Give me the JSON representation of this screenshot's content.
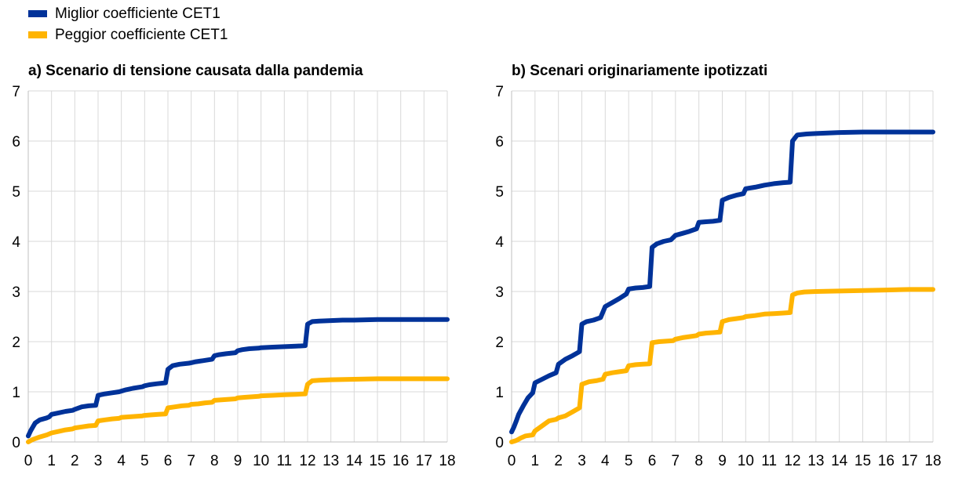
{
  "legend": {
    "items": [
      {
        "label": "Miglior coefficiente CET1",
        "color": "#003299"
      },
      {
        "label": "Peggior coefficiente CET1",
        "color": "#FFB400"
      }
    ]
  },
  "chart_data": [
    {
      "type": "line",
      "title": "a) Scenario di tensione causata dalla pandemia",
      "xlabel": "",
      "ylabel": "",
      "xlim": [
        0,
        18
      ],
      "ylim": [
        0,
        7
      ],
      "x_ticks": [
        "0",
        "1",
        "2",
        "3",
        "4",
        "5",
        "6",
        "7",
        "8",
        "9",
        "10",
        "11",
        "12",
        "13",
        "14",
        "15",
        "16",
        "17",
        "18"
      ],
      "y_ticks": [
        "0",
        "1",
        "2",
        "3",
        "4",
        "5",
        "6",
        "7"
      ],
      "grid": true,
      "series": [
        {
          "name": "Miglior coefficiente CET1",
          "color": "#003299",
          "x": [
            0,
            0.1,
            0.2,
            0.3,
            0.5,
            0.8,
            0.9,
            1,
            1.3,
            1.6,
            1.9,
            2,
            2.3,
            2.6,
            2.9,
            3,
            3.3,
            3.6,
            3.9,
            4.2,
            4.5,
            4.9,
            5,
            5.2,
            5.5,
            5.9,
            6,
            6.2,
            6.5,
            6.9,
            7,
            7.2,
            7.5,
            7.9,
            8,
            8.2,
            8.5,
            8.9,
            9,
            9.2,
            9.5,
            9.9,
            10,
            10.5,
            11,
            11.5,
            11.9,
            12,
            12.2,
            12.5,
            13,
            13.5,
            14,
            15,
            16,
            17,
            18
          ],
          "y": [
            0.12,
            0.22,
            0.3,
            0.38,
            0.44,
            0.48,
            0.5,
            0.55,
            0.58,
            0.61,
            0.63,
            0.65,
            0.7,
            0.72,
            0.73,
            0.93,
            0.96,
            0.98,
            1.0,
            1.04,
            1.07,
            1.1,
            1.12,
            1.14,
            1.16,
            1.18,
            1.45,
            1.52,
            1.55,
            1.57,
            1.58,
            1.6,
            1.62,
            1.65,
            1.72,
            1.74,
            1.76,
            1.78,
            1.82,
            1.84,
            1.86,
            1.87,
            1.88,
            1.89,
            1.9,
            1.91,
            1.92,
            2.35,
            2.4,
            2.41,
            2.42,
            2.43,
            2.43,
            2.44,
            2.44,
            2.44,
            2.44
          ]
        },
        {
          "name": "Peggior coefficiente CET1",
          "color": "#FFB400",
          "x": [
            0,
            0.2,
            0.5,
            0.8,
            1,
            1.3,
            1.6,
            1.9,
            2,
            2.3,
            2.6,
            2.9,
            3,
            3.3,
            3.6,
            3.9,
            4,
            4.3,
            4.6,
            4.9,
            5,
            5.3,
            5.6,
            5.9,
            6,
            6.3,
            6.6,
            6.9,
            7,
            7.3,
            7.6,
            7.9,
            8,
            8.3,
            8.6,
            8.9,
            9,
            9.3,
            9.6,
            9.9,
            10,
            10.5,
            11,
            11.5,
            11.9,
            12,
            12.2,
            12.5,
            13,
            14,
            15,
            16,
            17,
            18
          ],
          "y": [
            0.0,
            0.05,
            0.1,
            0.14,
            0.18,
            0.21,
            0.24,
            0.26,
            0.28,
            0.3,
            0.32,
            0.33,
            0.42,
            0.44,
            0.46,
            0.47,
            0.49,
            0.5,
            0.51,
            0.52,
            0.53,
            0.54,
            0.55,
            0.56,
            0.68,
            0.7,
            0.72,
            0.73,
            0.75,
            0.76,
            0.78,
            0.79,
            0.83,
            0.84,
            0.85,
            0.86,
            0.88,
            0.89,
            0.9,
            0.91,
            0.92,
            0.93,
            0.94,
            0.95,
            0.96,
            1.15,
            1.22,
            1.23,
            1.24,
            1.25,
            1.26,
            1.26,
            1.26,
            1.26
          ]
        }
      ]
    },
    {
      "type": "line",
      "title": "b) Scenari originariamente ipotizzati",
      "xlabel": "",
      "ylabel": "",
      "xlim": [
        0,
        18
      ],
      "ylim": [
        0,
        7
      ],
      "x_ticks": [
        "0",
        "1",
        "2",
        "3",
        "4",
        "5",
        "6",
        "7",
        "8",
        "9",
        "10",
        "11",
        "12",
        "13",
        "14",
        "15",
        "16",
        "17",
        "18"
      ],
      "y_ticks": [
        "0",
        "1",
        "2",
        "3",
        "4",
        "5",
        "6",
        "7"
      ],
      "grid": true,
      "series": [
        {
          "name": "Miglior coefficiente CET1",
          "color": "#003299",
          "x": [
            0,
            0.1,
            0.2,
            0.3,
            0.5,
            0.7,
            0.9,
            1,
            1.3,
            1.6,
            1.9,
            2,
            2.3,
            2.6,
            2.9,
            3,
            3.2,
            3.5,
            3.8,
            4,
            4.3,
            4.6,
            4.9,
            5,
            5.3,
            5.6,
            5.9,
            6,
            6.2,
            6.5,
            6.8,
            7,
            7.3,
            7.6,
            7.9,
            8,
            8.3,
            8.6,
            8.9,
            9,
            9.3,
            9.6,
            9.9,
            10,
            10.4,
            10.8,
            11.2,
            11.6,
            11.9,
            12,
            12.2,
            12.6,
            13,
            14,
            15,
            16,
            17,
            18
          ],
          "y": [
            0.2,
            0.3,
            0.42,
            0.55,
            0.72,
            0.88,
            0.98,
            1.18,
            1.25,
            1.32,
            1.38,
            1.55,
            1.65,
            1.72,
            1.8,
            2.35,
            2.4,
            2.43,
            2.48,
            2.7,
            2.78,
            2.86,
            2.95,
            3.05,
            3.07,
            3.08,
            3.1,
            3.88,
            3.95,
            4.0,
            4.03,
            4.12,
            4.16,
            4.2,
            4.25,
            4.38,
            4.39,
            4.4,
            4.42,
            4.82,
            4.88,
            4.92,
            4.95,
            5.05,
            5.08,
            5.12,
            5.15,
            5.17,
            5.18,
            6.0,
            6.12,
            6.14,
            6.15,
            6.17,
            6.18,
            6.18,
            6.18,
            6.18
          ]
        },
        {
          "name": "Peggior coefficiente CET1",
          "color": "#FFB400",
          "x": [
            0,
            0.2,
            0.4,
            0.6,
            0.9,
            1,
            1.3,
            1.6,
            1.9,
            2,
            2.3,
            2.6,
            2.9,
            3,
            3.3,
            3.6,
            3.9,
            4,
            4.3,
            4.6,
            4.9,
            5,
            5.3,
            5.6,
            5.9,
            6,
            6.3,
            6.6,
            6.9,
            7,
            7.3,
            7.6,
            7.9,
            8,
            8.3,
            8.6,
            8.9,
            9,
            9.3,
            9.6,
            9.9,
            10,
            10.4,
            10.8,
            11.2,
            11.6,
            11.9,
            12,
            12.2,
            12.5,
            13,
            14,
            15,
            16,
            17,
            18
          ],
          "y": [
            0.0,
            0.03,
            0.08,
            0.12,
            0.14,
            0.22,
            0.32,
            0.42,
            0.45,
            0.48,
            0.52,
            0.6,
            0.68,
            1.15,
            1.2,
            1.22,
            1.25,
            1.35,
            1.38,
            1.4,
            1.42,
            1.52,
            1.54,
            1.55,
            1.56,
            1.98,
            2.0,
            2.01,
            2.02,
            2.05,
            2.08,
            2.1,
            2.12,
            2.15,
            2.17,
            2.18,
            2.19,
            2.4,
            2.44,
            2.46,
            2.48,
            2.5,
            2.52,
            2.55,
            2.56,
            2.57,
            2.58,
            2.93,
            2.97,
            2.99,
            3.0,
            3.01,
            3.02,
            3.03,
            3.04,
            3.04
          ]
        }
      ]
    }
  ]
}
